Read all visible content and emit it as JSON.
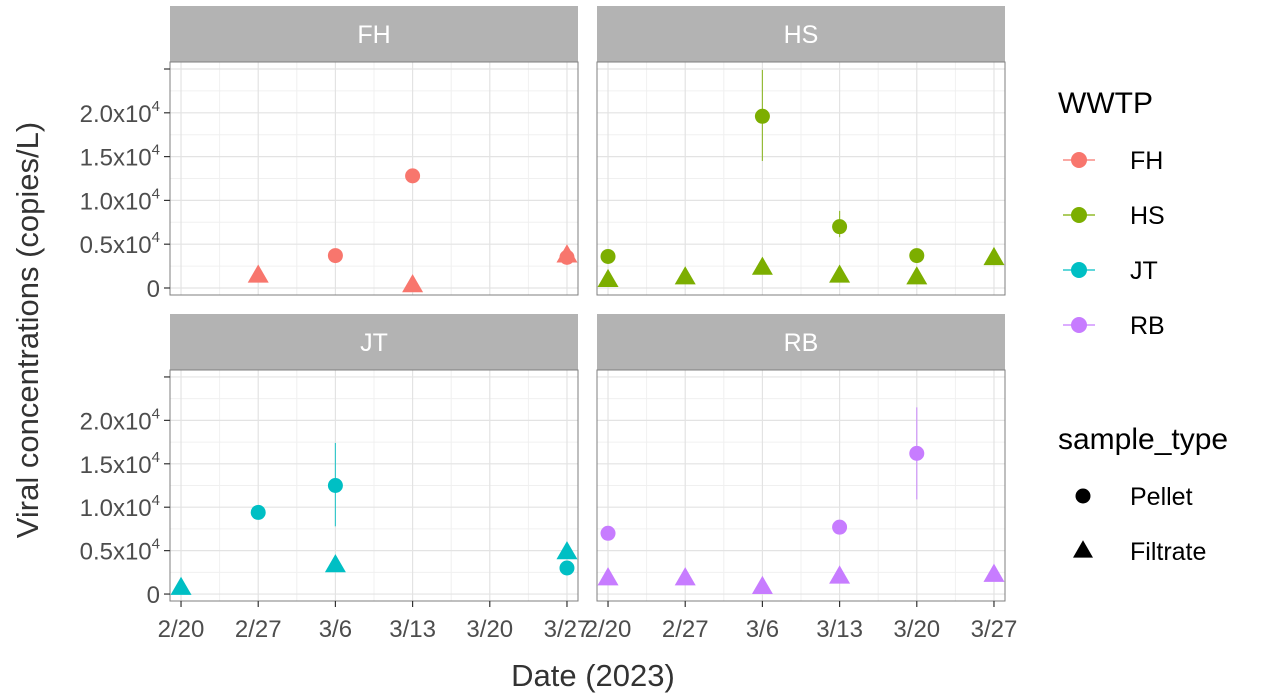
{
  "chart_data": {
    "type": "scatter",
    "facet_by": "WWTP",
    "xlabel": "Date (2023)",
    "ylabel": "Viral concentrations (copies/L)",
    "ylim": [
      -800,
      25800
    ],
    "y_ticks": [
      0,
      5000,
      10000,
      15000,
      20000
    ],
    "y_tick_labels": [
      {
        "mantissa": "0",
        "exp": ""
      },
      {
        "mantissa": "0.5x10",
        "exp": "4"
      },
      {
        "mantissa": "1.0x10",
        "exp": "4"
      },
      {
        "mantissa": "1.5x10",
        "exp": "4"
      },
      {
        "mantissa": "2.0x10",
        "exp": "4"
      }
    ],
    "x_ticks": [
      "2023-02-20",
      "2023-02-27",
      "2023-03-06",
      "2023-03-13",
      "2023-03-20",
      "2023-03-27"
    ],
    "x_tick_labels": [
      "2/20",
      "2/27",
      "3/6",
      "3/13",
      "3/20",
      "3/27"
    ],
    "xlim": [
      "2023-02-19",
      "2023-03-28"
    ],
    "grid": true,
    "legend_position": "right",
    "colors": {
      "FH": "#F8766D",
      "HS": "#7CAE00",
      "JT": "#00BFC4",
      "RB": "#C77CFF"
    },
    "legend": {
      "color_title": "WWTP",
      "color_items": [
        "FH",
        "HS",
        "JT",
        "RB"
      ],
      "shape_title": "sample_type",
      "shape_items": [
        {
          "label": "Pellet",
          "shape": "circle"
        },
        {
          "label": "Filtrate",
          "shape": "triangle"
        }
      ]
    },
    "panels": [
      {
        "name": "FH",
        "points": [
          {
            "x": "2023-02-27",
            "y": 1400,
            "type": "Filtrate"
          },
          {
            "x": "2023-03-06",
            "y": 3700,
            "type": "Pellet"
          },
          {
            "x": "2023-03-13",
            "y": 12800,
            "type": "Pellet"
          },
          {
            "x": "2023-03-13",
            "y": 300,
            "type": "Filtrate"
          },
          {
            "x": "2023-03-27",
            "y": 3500,
            "type": "Pellet"
          },
          {
            "x": "2023-03-27",
            "y": 3700,
            "type": "Filtrate"
          }
        ]
      },
      {
        "name": "HS",
        "points": [
          {
            "x": "2023-02-20",
            "y": 3600,
            "type": "Pellet"
          },
          {
            "x": "2023-02-20",
            "y": 900,
            "type": "Filtrate"
          },
          {
            "x": "2023-02-27",
            "y": 1200,
            "type": "Filtrate"
          },
          {
            "x": "2023-03-06",
            "y": 19600,
            "type": "Pellet",
            "ymin": 14500,
            "ymax": 24900
          },
          {
            "x": "2023-03-06",
            "y": 2300,
            "type": "Filtrate"
          },
          {
            "x": "2023-03-13",
            "y": 7000,
            "type": "Pellet",
            "ymin": 5800,
            "ymax": 8800
          },
          {
            "x": "2023-03-13",
            "y": 1400,
            "type": "Filtrate"
          },
          {
            "x": "2023-03-20",
            "y": 3700,
            "type": "Pellet"
          },
          {
            "x": "2023-03-20",
            "y": 1200,
            "type": "Filtrate"
          },
          {
            "x": "2023-03-27",
            "y": 3400,
            "type": "Filtrate"
          }
        ]
      },
      {
        "name": "JT",
        "points": [
          {
            "x": "2023-02-20",
            "y": 700,
            "type": "Filtrate"
          },
          {
            "x": "2023-02-27",
            "y": 9400,
            "type": "Pellet"
          },
          {
            "x": "2023-03-06",
            "y": 12500,
            "type": "Pellet",
            "ymin": 7800,
            "ymax": 17400
          },
          {
            "x": "2023-03-06",
            "y": 3300,
            "type": "Filtrate"
          },
          {
            "x": "2023-03-27",
            "y": 3000,
            "type": "Pellet"
          },
          {
            "x": "2023-03-27",
            "y": 4800,
            "type": "Filtrate"
          }
        ]
      },
      {
        "name": "RB",
        "points": [
          {
            "x": "2023-02-20",
            "y": 7000,
            "type": "Pellet"
          },
          {
            "x": "2023-02-20",
            "y": 1800,
            "type": "Filtrate"
          },
          {
            "x": "2023-02-27",
            "y": 1800,
            "type": "Filtrate"
          },
          {
            "x": "2023-03-06",
            "y": 800,
            "type": "Filtrate"
          },
          {
            "x": "2023-03-13",
            "y": 7700,
            "type": "Pellet"
          },
          {
            "x": "2023-03-13",
            "y": 2000,
            "type": "Filtrate"
          },
          {
            "x": "2023-03-20",
            "y": 16200,
            "type": "Pellet",
            "ymin": 10900,
            "ymax": 21500
          },
          {
            "x": "2023-03-27",
            "y": 2200,
            "type": "Filtrate"
          }
        ]
      }
    ]
  }
}
